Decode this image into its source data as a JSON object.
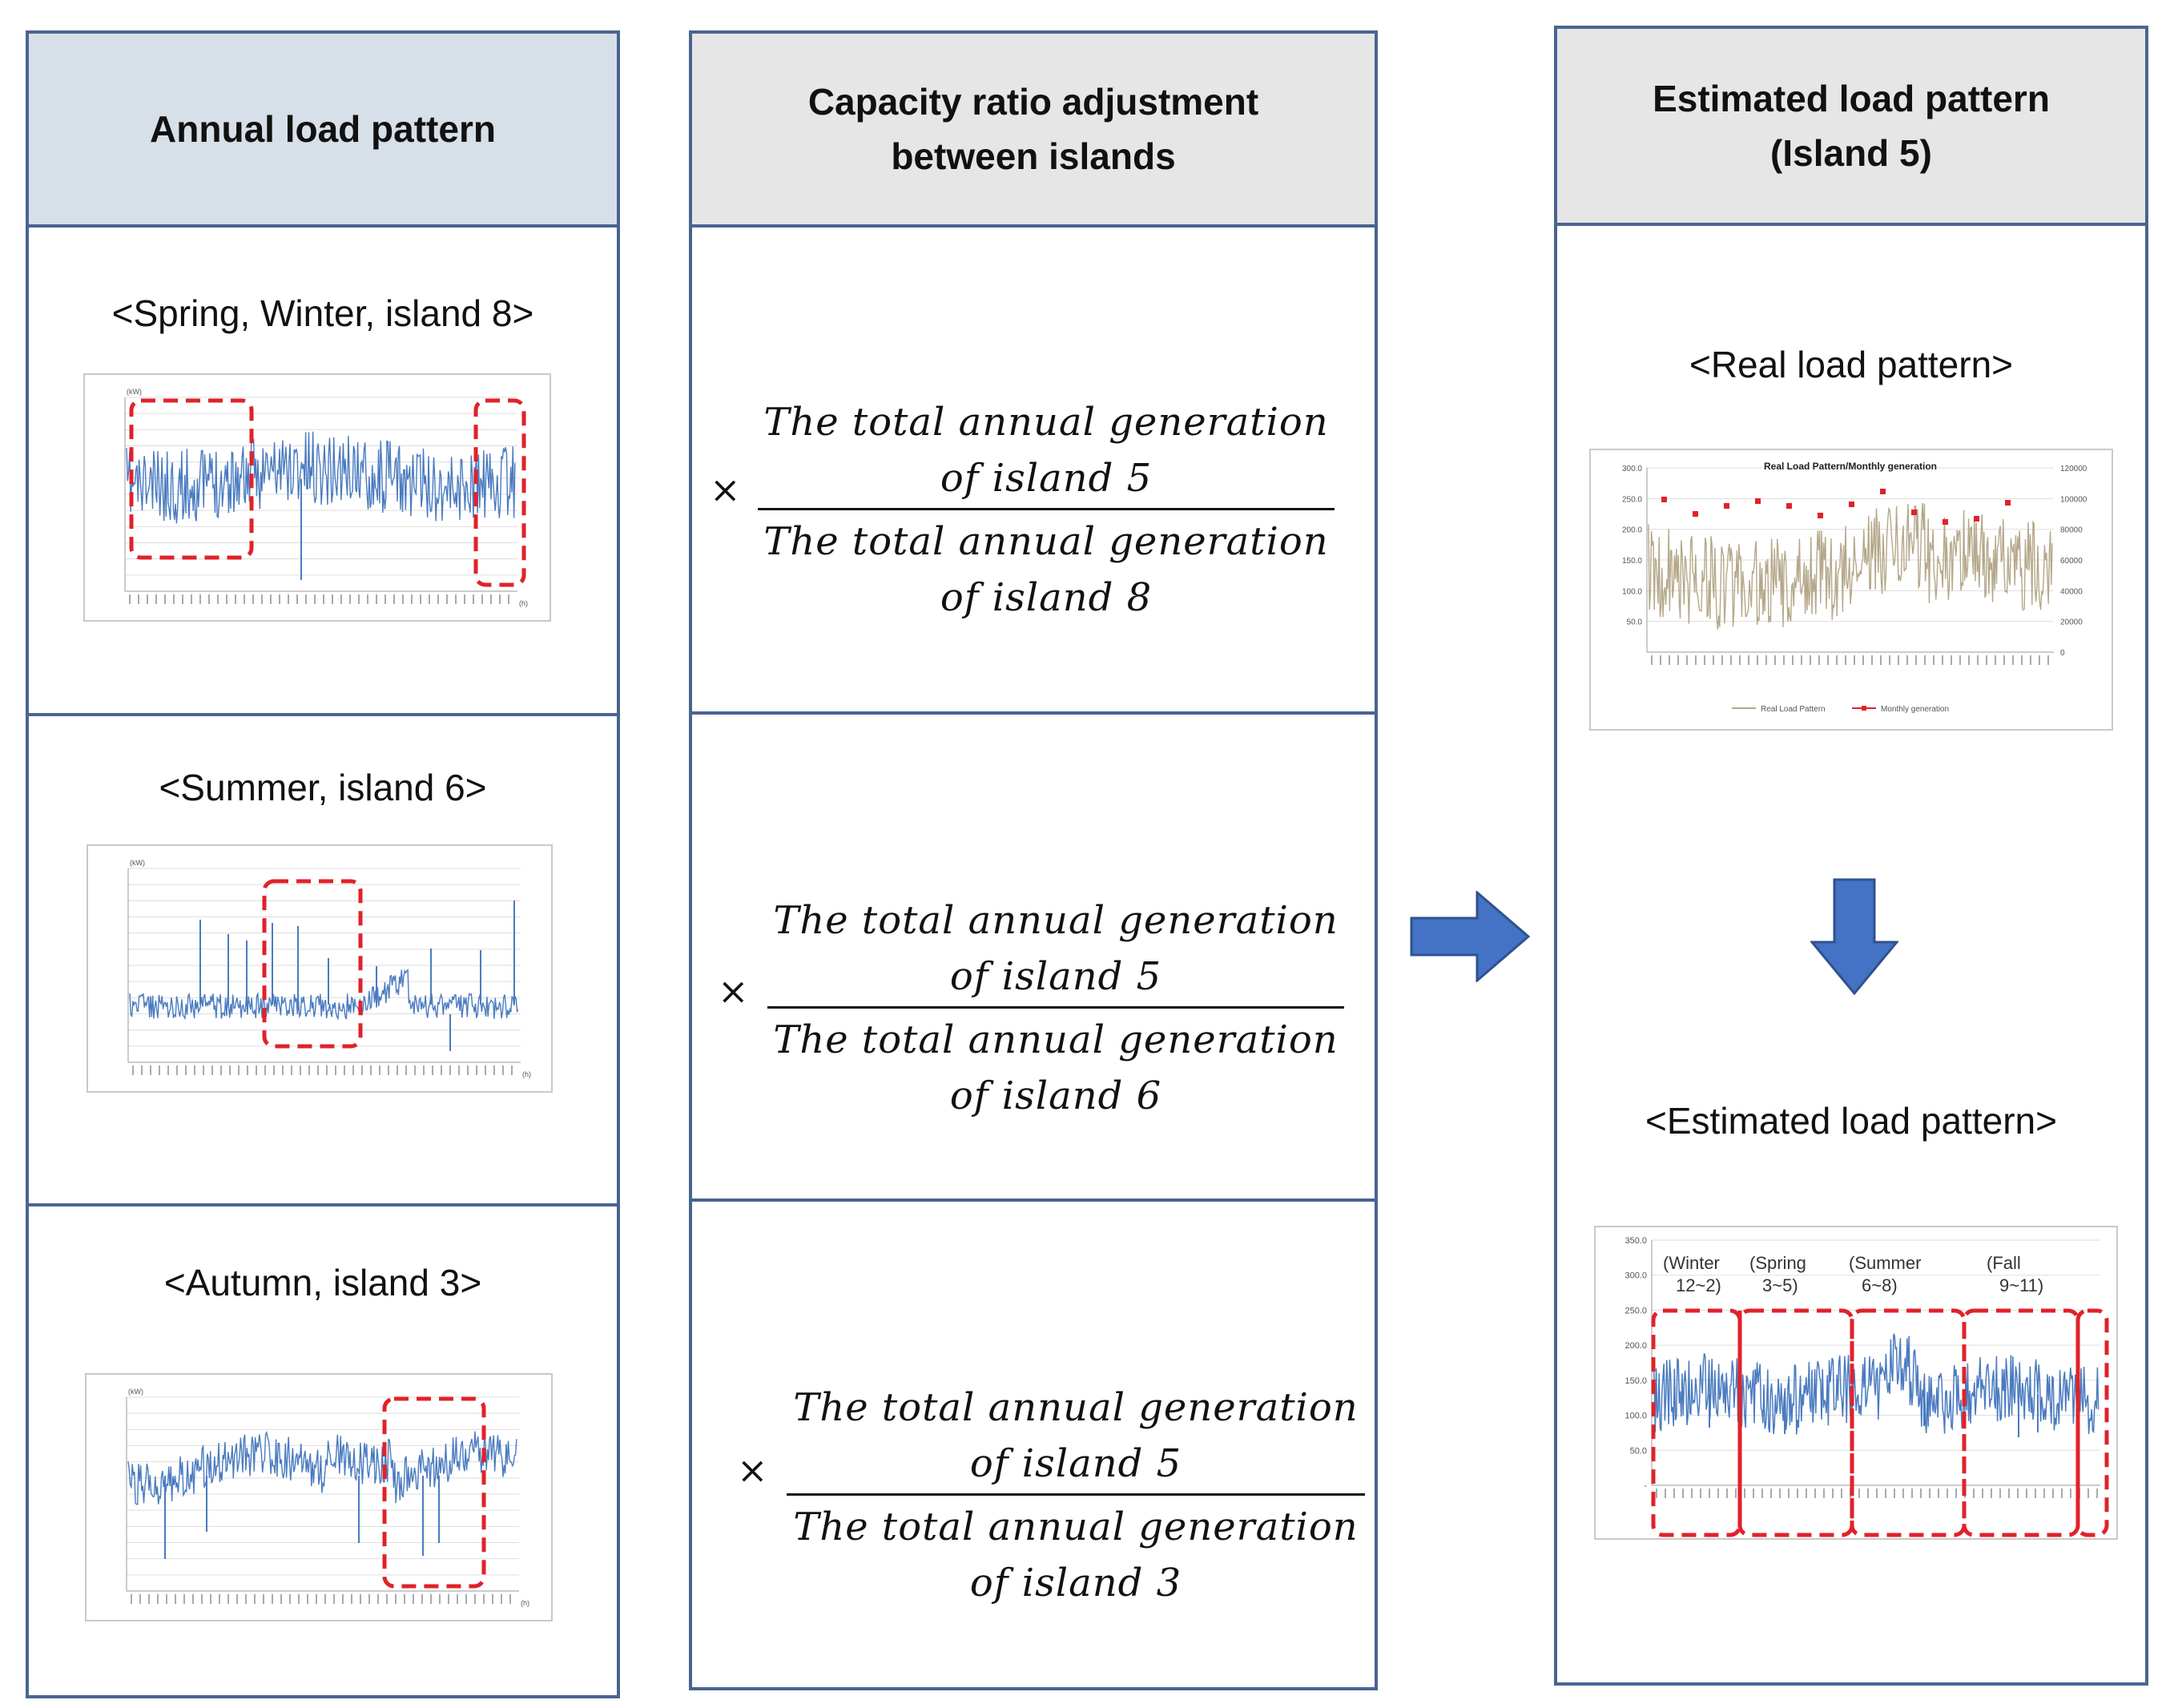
{
  "columns": {
    "annual": {
      "title": "Annual load pattern",
      "items": [
        {
          "caption": "<Spring, Winter, island 8>"
        },
        {
          "caption": "<Summer, island 6>"
        },
        {
          "caption": "<Autumn, island 3>"
        }
      ]
    },
    "ratio": {
      "title_line1": "Capacity ratio adjustment",
      "title_line2": "between islands",
      "times_symbol": "×",
      "formulas": [
        {
          "num1": "The total annual generation",
          "num2": "of island 5",
          "den1": "The total annual generation",
          "den2": "of island 8"
        },
        {
          "num1": "The total annual generation",
          "num2": "of island 5",
          "den1": "The total annual generation",
          "den2": "of island 6"
        },
        {
          "num1": "The total annual generation",
          "num2": "of island 5",
          "den1": "The total annual generation",
          "den2": "of island 3"
        }
      ]
    },
    "estimated": {
      "title_line1": "Estimated load pattern",
      "title_line2": "(Island 5)",
      "real_caption": "<Real load pattern>",
      "estimated_caption": "<Estimated load pattern>",
      "real_chart": {
        "title": "Real Load Pattern/Monthly generation",
        "legend_series": "Real Load Pattern",
        "legend_monthly": "Monthly generation",
        "left_ticks": [
          "300.0",
          "250.0",
          "200.0",
          "150.0",
          "100.0",
          "50.0",
          ""
        ],
        "right_ticks": [
          "120000",
          "100000",
          "80000",
          "60000",
          "40000",
          "20000",
          "0"
        ]
      },
      "estimated_chart": {
        "y_ticks": [
          "350.0",
          "300.0",
          "250.0",
          "200.0",
          "150.0",
          "100.0",
          "50.0",
          "-"
        ],
        "seasons": [
          {
            "line1": "(Winter",
            "line2": "12~2)"
          },
          {
            "line1": "(Spring",
            "line2": "3~5)"
          },
          {
            "line1": "(Summer",
            "line2": "6~8)"
          },
          {
            "line1": "(Fall",
            "line2": "9~11)"
          }
        ]
      }
    }
  },
  "small_chart_labels": {
    "y_unit": "(kW)",
    "x_unit": "(h)"
  },
  "colors": {
    "border": "#4a6491",
    "header_left": "#d7dfe8",
    "header_other": "#e6e6e6",
    "series_blue": "#4a7bc0",
    "series_tan": "#b5a88a",
    "highlight": "#e0222a",
    "arrow": "#4472c4"
  }
}
